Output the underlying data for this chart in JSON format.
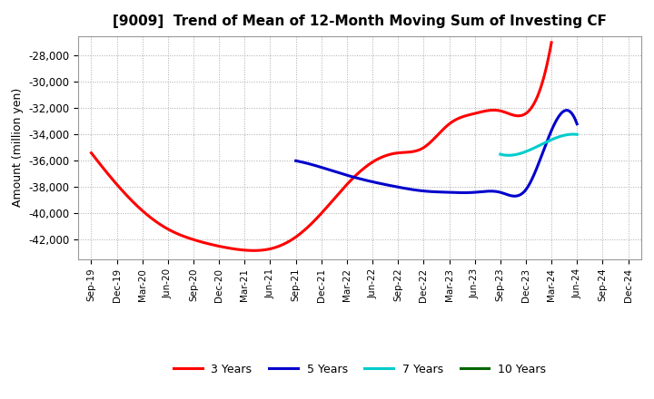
{
  "title": "[9009]  Trend of Mean of 12-Month Moving Sum of Investing CF",
  "ylabel": "Amount (million yen)",
  "ylim": [
    -43500,
    -26500
  ],
  "yticks": [
    -42000,
    -40000,
    -38000,
    -36000,
    -34000,
    -32000,
    -30000,
    -28000
  ],
  "background_color": "#ffffff",
  "grid_color": "#aaaaaa",
  "legend": [
    "3 Years",
    "5 Years",
    "7 Years",
    "10 Years"
  ],
  "legend_colors": [
    "#ff0000",
    "#0000cc",
    "#00cccc",
    "#006600"
  ],
  "x_labels": [
    "Sep-19",
    "Dec-19",
    "Mar-20",
    "Jun-20",
    "Sep-20",
    "Dec-20",
    "Mar-21",
    "Jun-21",
    "Sep-21",
    "Dec-21",
    "Mar-22",
    "Jun-22",
    "Sep-22",
    "Dec-22",
    "Mar-23",
    "Jun-23",
    "Sep-23",
    "Dec-23",
    "Mar-24",
    "Jun-24",
    "Sep-24",
    "Dec-24"
  ],
  "series_3yr": {
    "x": [
      0,
      1,
      2,
      3,
      4,
      5,
      6,
      7,
      8,
      9,
      10,
      11,
      12,
      13,
      14,
      15,
      16,
      17,
      18
    ],
    "y": [
      -35400,
      -37800,
      -39800,
      -41200,
      -42000,
      -42500,
      -42800,
      -42700,
      -41800,
      -40000,
      -37800,
      -36100,
      -35400,
      -35000,
      -33200,
      -32400,
      -32200,
      -32400,
      -27000
    ]
  },
  "series_5yr": {
    "x": [
      8,
      9,
      10,
      11,
      12,
      13,
      14,
      15,
      16,
      17,
      18,
      19
    ],
    "y": [
      -36000,
      -36500,
      -37100,
      -37600,
      -38000,
      -38300,
      -38400,
      -38400,
      -38400,
      -38200,
      -33700,
      -33200
    ]
  },
  "series_7yr": {
    "x": [
      16,
      17,
      18,
      19
    ],
    "y": [
      -35500,
      -35300,
      -34400,
      -34000
    ]
  },
  "series_10yr": {
    "x": [],
    "y": []
  }
}
